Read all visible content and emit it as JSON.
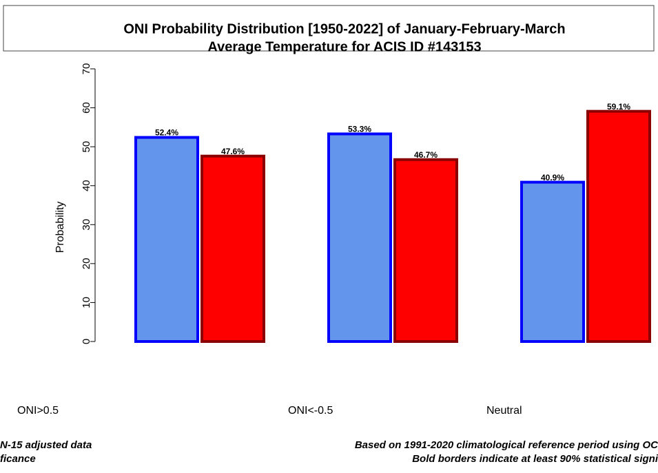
{
  "chart_data": {
    "type": "bar",
    "title": "ONI Probability Distribution [1950-2022] of January-February-March",
    "subtitle": "Average Temperature  for ACIS ID #143153",
    "y_label": "Probability",
    "categories": [
      "ONI>0.5",
      "ONI<-0.5",
      "Neutral"
    ],
    "series": [
      {
        "color": "#6495ed",
        "border": "#0000ff",
        "values": [
          52.4,
          53.3,
          40.9
        ],
        "value_labels": [
          "52.4%",
          "53.3%",
          "40.9%"
        ]
      },
      {
        "color": "#ff0000",
        "border": "#8b0000",
        "values": [
          47.6,
          46.7,
          59.1
        ],
        "value_labels": [
          "47.6%",
          "46.7%",
          "59.1%"
        ]
      }
    ],
    "ylim": [
      0,
      70
    ],
    "yticks": [
      0,
      10,
      20,
      30,
      40,
      50,
      60,
      70
    ],
    "footnotes_left": [
      "N-15 adjusted data",
      "ficance"
    ],
    "footnotes_right": [
      "Based on 1991-2020 climatological reference period using OC",
      "Bold borders indicate at least 90% statistical signi"
    ]
  }
}
